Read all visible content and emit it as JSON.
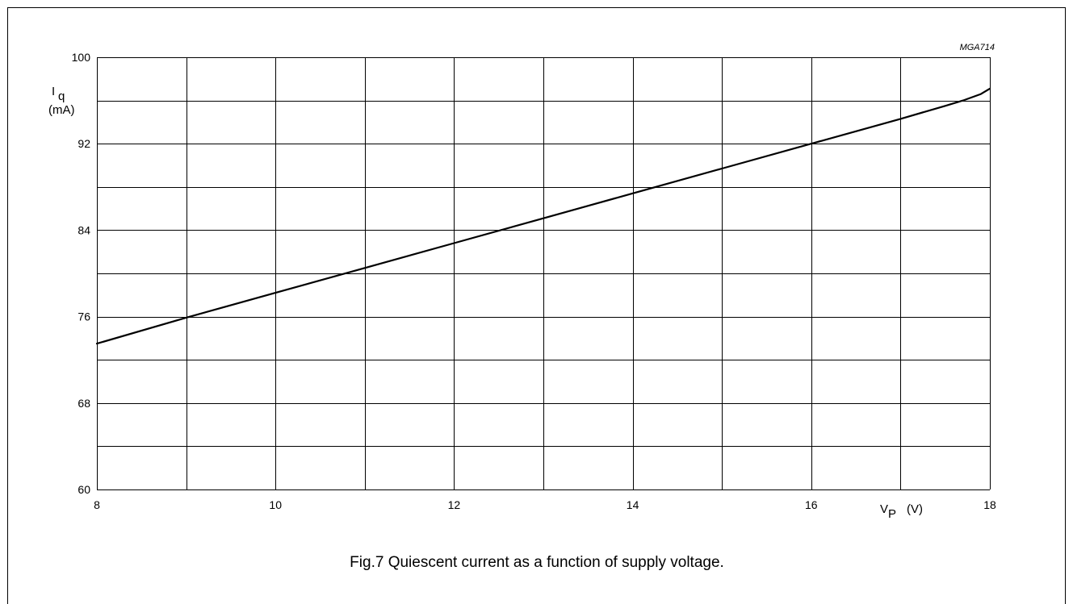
{
  "figure": {
    "reference": "MGA714",
    "caption": "Fig.7  Quiescent current as a function of supply voltage."
  },
  "chart_data": {
    "type": "line",
    "xlim": [
      8,
      18
    ],
    "ylim": [
      60,
      100
    ],
    "x_ticks": [
      8,
      10,
      12,
      14,
      16,
      18
    ],
    "y_ticks": [
      60,
      68,
      76,
      84,
      92,
      100
    ],
    "x_grid_step": 1,
    "y_grid_step": 4,
    "grid": true,
    "ylabel": {
      "main": "I",
      "sub": "q",
      "unit": "(mA)"
    },
    "xlabel": {
      "main": "V",
      "sub": "P",
      "unit": "(V)"
    },
    "series": [
      {
        "x": [
          8,
          9,
          10,
          11,
          12,
          13,
          14,
          15,
          16,
          17,
          17.5,
          17.7,
          17.9,
          18
        ],
        "y": [
          73.5,
          75.9,
          78.2,
          80.5,
          82.8,
          85.1,
          87.4,
          89.7,
          92.0,
          94.3,
          95.5,
          96.0,
          96.6,
          97.1
        ]
      }
    ]
  }
}
